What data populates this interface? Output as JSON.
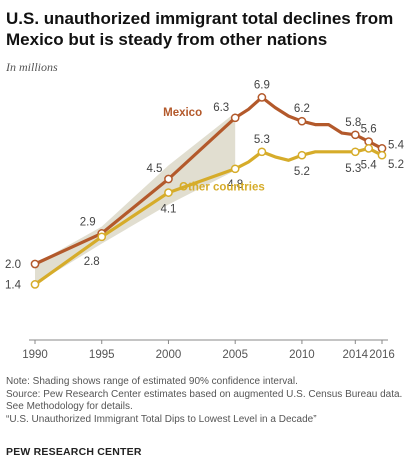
{
  "title": "U.S. unauthorized immigrant total declines from Mexico but is steady from other nations",
  "subtitle": "In millions",
  "notes": {
    "note": "Note: Shading shows range of estimated 90% confidence interval.",
    "source_1": "Source: Pew Research Center estimates based on augmented U.S. Census Bureau data.",
    "source_2": "See Methodology for details.",
    "report": "“U.S. Unauthorized Immigrant Total Dips to Lowest Level in a Decade”"
  },
  "org": "PEW RESEARCH CENTER",
  "colors": {
    "mexico": "#b3592b",
    "other": "#d6ac2a",
    "band": "#d9d6c4",
    "axis": "#888888",
    "label": "#444444"
  },
  "chart_data": {
    "type": "line",
    "xlim": [
      1990,
      2016
    ],
    "ylim": [
      0,
      7.5
    ],
    "x_ticks": [
      1990,
      1995,
      2000,
      2005,
      2010,
      2014,
      2016
    ],
    "grid": false,
    "series": [
      {
        "name": "Mexico",
        "points": [
          [
            1990,
            2.0
          ],
          [
            1995,
            2.9
          ],
          [
            2000,
            4.5
          ],
          [
            2005,
            6.3
          ],
          [
            2006,
            6.55
          ],
          [
            2007,
            6.9
          ],
          [
            2008,
            6.6
          ],
          [
            2009,
            6.35
          ],
          [
            2010,
            6.2
          ],
          [
            2011,
            6.1
          ],
          [
            2012,
            6.1
          ],
          [
            2013,
            5.85
          ],
          [
            2014,
            5.8
          ],
          [
            2015,
            5.6
          ],
          [
            2016,
            5.4
          ]
        ],
        "labels": [
          {
            "x": 1990,
            "y": 2.0,
            "text": "2.0"
          },
          {
            "x": 1995,
            "y": 2.9,
            "text": "2.9"
          },
          {
            "x": 2000,
            "y": 4.5,
            "text": "4.5"
          },
          {
            "x": 2005,
            "y": 6.3,
            "text": "6.3"
          },
          {
            "x": 2007,
            "y": 6.9,
            "text": "6.9"
          },
          {
            "x": 2010,
            "y": 6.2,
            "text": "6.2"
          },
          {
            "x": 2014,
            "y": 5.8,
            "text": "5.8"
          },
          {
            "x": 2015,
            "y": 5.6,
            "text": "5.6"
          },
          {
            "x": 2016,
            "y": 5.4,
            "text": "5.4"
          }
        ]
      },
      {
        "name": "Other countries",
        "points": [
          [
            1990,
            1.4
          ],
          [
            1995,
            2.8
          ],
          [
            2000,
            4.1
          ],
          [
            2005,
            4.8
          ],
          [
            2006,
            5.0
          ],
          [
            2007,
            5.3
          ],
          [
            2008,
            5.15
          ],
          [
            2009,
            5.05
          ],
          [
            2010,
            5.2
          ],
          [
            2011,
            5.3
          ],
          [
            2012,
            5.3
          ],
          [
            2013,
            5.3
          ],
          [
            2014,
            5.3
          ],
          [
            2015,
            5.4
          ],
          [
            2016,
            5.2
          ]
        ],
        "labels": [
          {
            "x": 1990,
            "y": 1.4,
            "text": "1.4"
          },
          {
            "x": 1995,
            "y": 2.8,
            "text": "2.8"
          },
          {
            "x": 2000,
            "y": 4.1,
            "text": "4.1"
          },
          {
            "x": 2005,
            "y": 4.8,
            "text": "4.8"
          },
          {
            "x": 2007,
            "y": 5.3,
            "text": "5.3"
          },
          {
            "x": 2010,
            "y": 5.2,
            "text": "5.2"
          },
          {
            "x": 2014,
            "y": 5.3,
            "text": "5.3"
          },
          {
            "x": 2015,
            "y": 5.4,
            "text": "5.4"
          },
          {
            "x": 2016,
            "y": 5.2,
            "text": "5.2"
          }
        ]
      }
    ],
    "confidence_band": {
      "x": [
        1990,
        1995,
        2000,
        2005
      ],
      "low": [
        1.4,
        2.6,
        3.75,
        4.75
      ],
      "high": [
        2.0,
        3.1,
        4.9,
        6.45
      ]
    },
    "annotations": [
      "Mexico",
      "Other countries"
    ]
  }
}
